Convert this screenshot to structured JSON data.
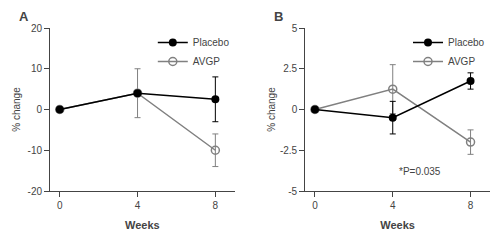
{
  "chart_data": [
    {
      "type": "line",
      "title": "A",
      "x": [
        0,
        4,
        8
      ],
      "xlabel": "Weeks",
      "ylabel": "% change",
      "xlim": [
        -0.5,
        9
      ],
      "xticks": [
        0,
        4,
        8
      ],
      "ylim": [
        -20,
        20
      ],
      "yticks": [
        -20,
        -10,
        0,
        10,
        20
      ],
      "grid": false,
      "legend": "upper right",
      "series": [
        {
          "name": "AVGP",
          "color": "#808080",
          "marker": "open circle",
          "line_style": "solid",
          "values": [
            0,
            4,
            -10
          ],
          "errors": [
            0,
            6,
            4
          ]
        },
        {
          "name": "Placebo",
          "color": "#000000",
          "marker": "circle",
          "line_style": "solid",
          "values": [
            0,
            4,
            2.5
          ],
          "errors": [
            0,
            0,
            5.5
          ]
        }
      ]
    },
    {
      "type": "line",
      "title": "B",
      "x": [
        0,
        4,
        8
      ],
      "xlabel": "Weeks",
      "ylabel": "% change",
      "xlim": [
        -0.5,
        9
      ],
      "xticks": [
        0,
        4,
        8
      ],
      "ylim": [
        -5,
        5
      ],
      "yticks": [
        -5,
        -2.5,
        0,
        2.5,
        5
      ],
      "grid": false,
      "legend": "upper right",
      "series": [
        {
          "name": "AVGP",
          "color": "#808080",
          "marker": "open circle",
          "line_style": "solid",
          "values": [
            0,
            1.25,
            -2.0
          ],
          "errors": [
            0,
            1.5,
            0.75
          ]
        },
        {
          "name": "Placebo",
          "color": "#000000",
          "marker": "circle",
          "line_style": "solid",
          "values": [
            0,
            -0.5,
            1.75
          ],
          "errors": [
            0,
            1.0,
            0.5
          ]
        }
      ],
      "annotations": [
        {
          "text": "*P=0.035",
          "x": 4.2,
          "y": -3.8
        }
      ]
    }
  ]
}
